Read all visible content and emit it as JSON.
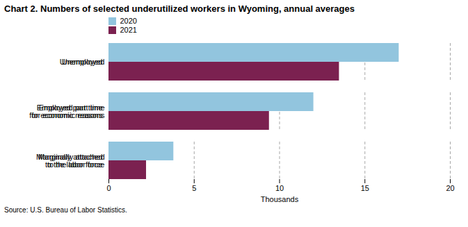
{
  "chart_data": {
    "type": "bar",
    "orientation": "horizontal",
    "title": "Chart 2.  Numbers of selected underutilized workers in Wyoming,  annual averages",
    "categories": [
      "Marginally attached\nto the labor force",
      "Employed part time\nfor economic reasons",
      "Unemployed"
    ],
    "series": [
      {
        "name": "2020",
        "color": "#92c5de",
        "values": [
          3.8,
          12.0,
          17.0
        ]
      },
      {
        "name": "2021",
        "color": "#7b2150",
        "values": [
          2.2,
          9.4,
          13.5
        ]
      }
    ],
    "xlabel": "Thousands",
    "xlim": [
      0,
      20
    ],
    "xticks": [
      0,
      5,
      10,
      15,
      20
    ],
    "grid": true,
    "legend": "top",
    "caption": "Source: U.S. Bureau of Labor Statistics."
  }
}
